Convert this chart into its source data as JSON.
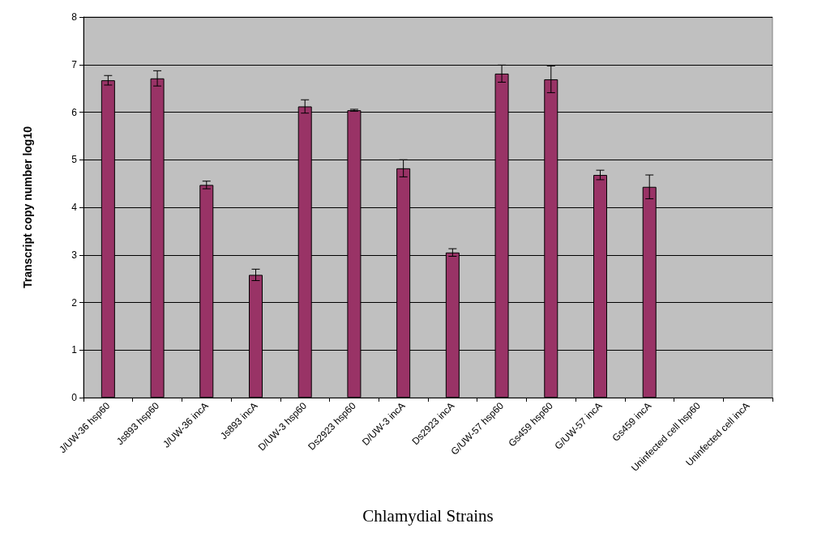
{
  "chart_data": {
    "type": "bar",
    "xlabel": "Chlamydial Strains",
    "ylabel": "Transcript copy number log10",
    "categories": [
      "J/UW-36 hsp60",
      "Js893 hsp60",
      "J/UW-36 incA",
      "Js893 incA",
      "D/UW-3 hsp60",
      "Ds2923 hsp60",
      "D/UW-3 incA",
      "Ds2923 incA",
      "G/UW-57 hsp60",
      "Gs459 hsp60",
      "G/UW-57 incA",
      "Gs459 incA",
      "Uninfected cell hsp60",
      "Uninfected cell incA"
    ],
    "values": [
      6.67,
      6.71,
      4.47,
      2.58,
      6.12,
      6.04,
      4.82,
      3.05,
      6.81,
      6.69,
      4.68,
      4.43,
      0,
      0
    ],
    "errors": [
      0.1,
      0.16,
      0.08,
      0.12,
      0.14,
      0.02,
      0.18,
      0.08,
      0.18,
      0.28,
      0.1,
      0.25,
      null,
      null
    ],
    "color": "#993366",
    "ylim": [
      0,
      8
    ],
    "yticks": [
      0,
      1,
      2,
      3,
      4,
      5,
      6,
      7,
      8
    ],
    "grid": "y"
  }
}
